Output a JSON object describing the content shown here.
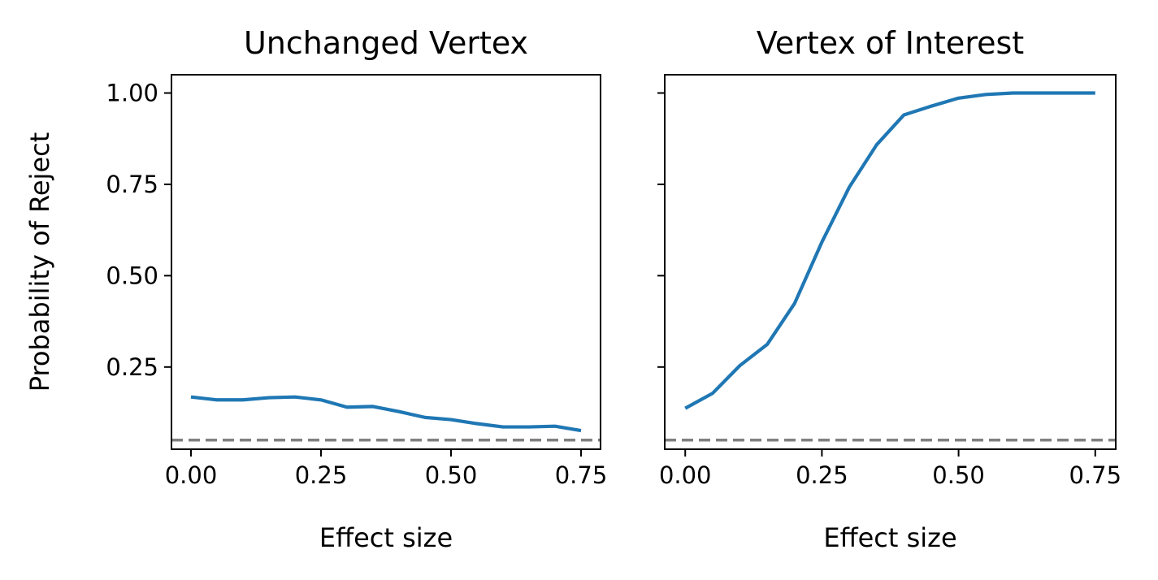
{
  "chart_data": [
    {
      "type": "line",
      "title": "Unchanged Vertex",
      "xlabel": "Effect size",
      "ylabel": "Probability of Reject",
      "xlim": [
        -0.0375,
        0.7875
      ],
      "ylim": [
        0.025,
        1.05
      ],
      "xticks": [
        "0.00",
        "0.25",
        "0.50",
        "0.75"
      ],
      "yticks": [
        "0.25",
        "0.50",
        "0.75",
        "1.00"
      ],
      "grid": false,
      "reference_line": {
        "y": 0.05,
        "style": "dashed",
        "color": "#808080"
      },
      "series": [
        {
          "color": "#1f77b4",
          "x": [
            0,
            0.05,
            0.1,
            0.15,
            0.2,
            0.25,
            0.3,
            0.35,
            0.4,
            0.45,
            0.5,
            0.55,
            0.6,
            0.65,
            0.7,
            0.75
          ],
          "values": [
            0.168,
            0.16,
            0.16,
            0.166,
            0.168,
            0.16,
            0.14,
            0.142,
            0.128,
            0.112,
            0.106,
            0.095,
            0.086,
            0.086,
            0.088,
            0.076
          ]
        }
      ]
    },
    {
      "type": "line",
      "title": "Vertex of Interest",
      "xlabel": "Effect size",
      "ylabel": "",
      "xlim": [
        -0.0375,
        0.7875
      ],
      "ylim": [
        0.025,
        1.05
      ],
      "xticks": [
        "0.00",
        "0.25",
        "0.50",
        "0.75"
      ],
      "yticks": [
        "0.25",
        "0.50",
        "0.75",
        "1.00"
      ],
      "show_ytick_labels": false,
      "grid": false,
      "reference_line": {
        "y": 0.05,
        "style": "dashed",
        "color": "#808080"
      },
      "series": [
        {
          "color": "#1f77b4",
          "x": [
            0,
            0.05,
            0.1,
            0.15,
            0.2,
            0.25,
            0.3,
            0.35,
            0.4,
            0.45,
            0.5,
            0.55,
            0.6,
            0.65,
            0.7,
            0.75
          ],
          "values": [
            0.137,
            0.178,
            0.254,
            0.312,
            0.424,
            0.592,
            0.742,
            0.858,
            0.94,
            0.964,
            0.986,
            0.996,
            1.0,
            1.0,
            1.0,
            1.0
          ]
        }
      ]
    }
  ]
}
